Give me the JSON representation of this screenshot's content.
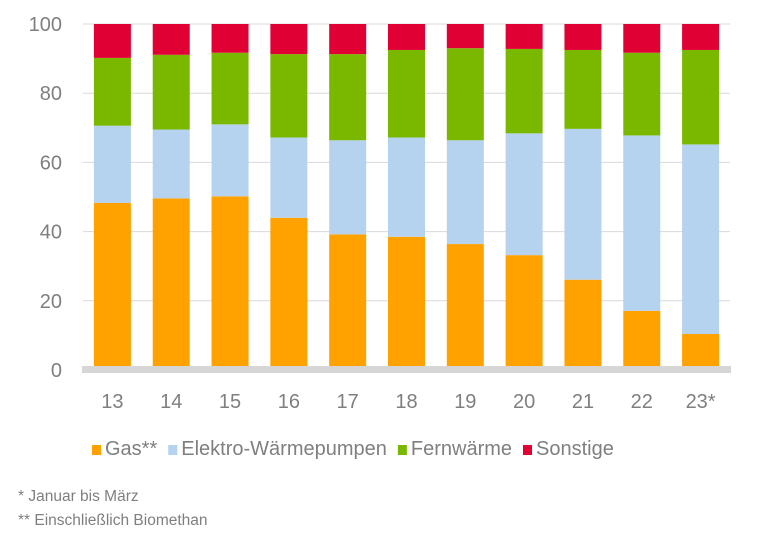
{
  "chart_data": {
    "type": "bar",
    "stacked": true,
    "categories": [
      "13",
      "14",
      "15",
      "16",
      "17",
      "18",
      "19",
      "20",
      "21",
      "22",
      "23*"
    ],
    "series": [
      {
        "name": "Gas**",
        "color": "#ffa200",
        "values": [
          48.3,
          49.6,
          50.2,
          44.0,
          39.2,
          38.5,
          36.4,
          33.2,
          26.1,
          17.1,
          10.4
        ]
      },
      {
        "name": "Elektro-Wärmepumpen",
        "color": "#b5d2ef",
        "values": [
          22.3,
          19.9,
          20.8,
          23.2,
          27.2,
          28.7,
          30.0,
          35.2,
          43.6,
          50.7,
          54.8
        ]
      },
      {
        "name": "Fernwärme",
        "color": "#7ab800",
        "values": [
          19.6,
          21.6,
          20.7,
          24.1,
          24.9,
          25.3,
          26.6,
          24.4,
          22.8,
          23.9,
          27.3
        ]
      },
      {
        "name": "Sonstige",
        "color": "#e10034",
        "values": [
          9.8,
          8.9,
          8.3,
          8.7,
          8.7,
          7.5,
          7.0,
          7.2,
          7.5,
          8.3,
          7.5
        ]
      }
    ],
    "ylim": [
      0,
      100
    ],
    "yticks": [
      "0",
      "20",
      "40",
      "60",
      "80",
      "100"
    ],
    "grid": true,
    "legend_position": "bottom",
    "footnotes": [
      "* Januar bis März",
      "** Einschließlich Biomethan"
    ]
  }
}
